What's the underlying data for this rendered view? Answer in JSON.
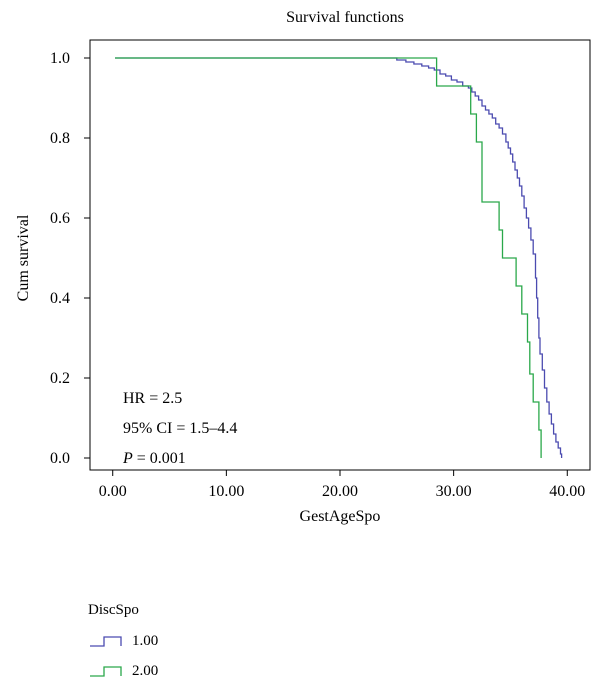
{
  "chart_data": {
    "type": "line",
    "title": "Survival functions",
    "xlabel": "GestAgeSpo",
    "ylabel": "Cum survival",
    "xlim": [
      -2,
      42
    ],
    "ylim": [
      -0.03,
      1.045
    ],
    "xticks": [
      {
        "value": 0,
        "label": "0.00"
      },
      {
        "value": 10,
        "label": "10.00"
      },
      {
        "value": 20,
        "label": "20.00"
      },
      {
        "value": 30,
        "label": "30.00"
      },
      {
        "value": 40,
        "label": "40.00"
      }
    ],
    "yticks": [
      {
        "value": 0,
        "label": "0.0"
      },
      {
        "value": 0.2,
        "label": "0.2"
      },
      {
        "value": 0.4,
        "label": "0.4"
      },
      {
        "value": 0.6,
        "label": "0.6"
      },
      {
        "value": 0.8,
        "label": "0.8"
      },
      {
        "value": 1.0,
        "label": "1.0"
      }
    ],
    "grid": false,
    "legend": {
      "title": "DiscSpo",
      "position": "bottom-left"
    },
    "annotations": {
      "line1": "HR = 2.5",
      "line2": "95% CI = 1.5–4.4",
      "line3_italic": "P",
      "line3_rest": " = 0.001"
    },
    "series": [
      {
        "name": "1.00",
        "color": "#4b4bb0",
        "step_points": [
          [
            0.2,
            1.0
          ],
          [
            25.0,
            0.995
          ],
          [
            25.8,
            0.99
          ],
          [
            26.5,
            0.985
          ],
          [
            27.2,
            0.98
          ],
          [
            27.8,
            0.975
          ],
          [
            28.3,
            0.97
          ],
          [
            28.8,
            0.96
          ],
          [
            29.3,
            0.955
          ],
          [
            29.8,
            0.945
          ],
          [
            30.3,
            0.94
          ],
          [
            30.8,
            0.93
          ],
          [
            31.3,
            0.925
          ],
          [
            31.6,
            0.915
          ],
          [
            31.9,
            0.905
          ],
          [
            32.2,
            0.895
          ],
          [
            32.5,
            0.88
          ],
          [
            32.8,
            0.87
          ],
          [
            33.1,
            0.86
          ],
          [
            33.4,
            0.85
          ],
          [
            33.7,
            0.835
          ],
          [
            34.0,
            0.825
          ],
          [
            34.3,
            0.81
          ],
          [
            34.6,
            0.79
          ],
          [
            34.8,
            0.775
          ],
          [
            35.0,
            0.76
          ],
          [
            35.2,
            0.74
          ],
          [
            35.4,
            0.72
          ],
          [
            35.6,
            0.7
          ],
          [
            35.8,
            0.68
          ],
          [
            36.0,
            0.655
          ],
          [
            36.2,
            0.625
          ],
          [
            36.4,
            0.6
          ],
          [
            36.6,
            0.575
          ],
          [
            36.8,
            0.545
          ],
          [
            37.0,
            0.51
          ],
          [
            37.2,
            0.45
          ],
          [
            37.3,
            0.4
          ],
          [
            37.4,
            0.35
          ],
          [
            37.5,
            0.3
          ],
          [
            37.6,
            0.26
          ],
          [
            37.8,
            0.22
          ],
          [
            38.0,
            0.175
          ],
          [
            38.2,
            0.14
          ],
          [
            38.4,
            0.11
          ],
          [
            38.6,
            0.085
          ],
          [
            38.8,
            0.06
          ],
          [
            39.0,
            0.04
          ],
          [
            39.2,
            0.025
          ],
          [
            39.4,
            0.01
          ],
          [
            39.5,
            0.0
          ]
        ]
      },
      {
        "name": "2.00",
        "color": "#2aa84a",
        "step_points": [
          [
            0.2,
            1.0
          ],
          [
            28.5,
            0.93
          ],
          [
            31.5,
            0.86
          ],
          [
            32.0,
            0.79
          ],
          [
            32.5,
            0.64
          ],
          [
            34.0,
            0.57
          ],
          [
            34.3,
            0.5
          ],
          [
            35.5,
            0.43
          ],
          [
            36.0,
            0.36
          ],
          [
            36.5,
            0.29
          ],
          [
            36.7,
            0.21
          ],
          [
            37.0,
            0.14
          ],
          [
            37.5,
            0.07
          ],
          [
            37.7,
            0.0
          ]
        ]
      }
    ]
  }
}
